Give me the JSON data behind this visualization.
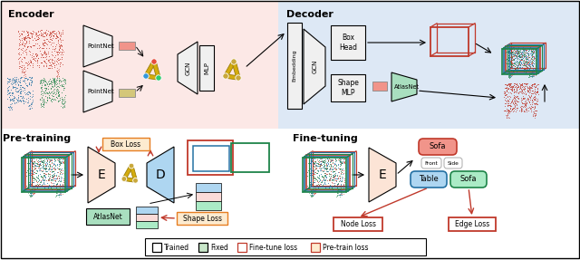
{
  "encoder_bg": "#fce8e6",
  "decoder_bg": "#dde8f5",
  "encoder_label": "Encoder",
  "decoder_label": "Decoder",
  "pretrain_label": "Pre-training",
  "finetune_label": "Fine-tuning",
  "colors": {
    "red": "#c0392b",
    "blue": "#2471a3",
    "green": "#1e8449",
    "node_red": "#e74c3c",
    "node_blue": "#3498db",
    "node_green": "#2ecc71",
    "node_yellow": "#c9a83c",
    "edge_yellow": "#d4ac0d",
    "pink_feat": "#f1948a",
    "yellow_feat": "#d4c77a",
    "loss_orange_bg": "#fdebd0",
    "loss_orange_ec": "#e67e22",
    "atlasnet_green": "#a9dfbf",
    "encoder_fill": "#fce4d6",
    "decoder_fill_e": "#aed6f1",
    "shape_blue": "#aed6f1",
    "shape_pink": "#fadbd8",
    "shape_green": "#abebc6",
    "sofa_red_fill": "#f1948a",
    "table_blue_fill": "#aed6f1",
    "sofa2_green_fill": "#abebc6"
  }
}
